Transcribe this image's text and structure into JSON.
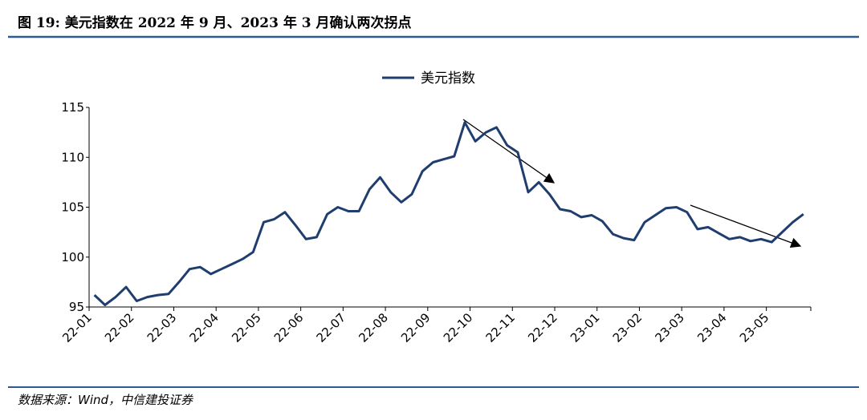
{
  "chart_data": {
    "type": "line",
    "title": "图 19: 美元指数在 2022 年 9 月、2023 年 3 月确认两次拐点",
    "source": "数据来源：Wind，中信建投证券",
    "categories": [
      "22-01",
      "22-02",
      "22-03",
      "22-04",
      "22-05",
      "22-06",
      "22-07",
      "22-08",
      "22-09",
      "22-10",
      "22-11",
      "22-12",
      "23-01",
      "23-02",
      "23-03",
      "23-04",
      "23-05"
    ],
    "x": [
      "22-01",
      "22-01",
      "22-01",
      "22-01",
      "22-02",
      "22-02",
      "22-02",
      "22-02",
      "22-03",
      "22-03",
      "22-03",
      "22-03",
      "22-04",
      "22-04",
      "22-04",
      "22-04",
      "22-05",
      "22-05",
      "22-05",
      "22-05",
      "22-06",
      "22-06",
      "22-06",
      "22-06",
      "22-07",
      "22-07",
      "22-07",
      "22-07",
      "22-08",
      "22-08",
      "22-08",
      "22-08",
      "22-09",
      "22-09",
      "22-09",
      "22-09",
      "22-10",
      "22-10",
      "22-10",
      "22-10",
      "22-11",
      "22-11",
      "22-11",
      "22-11",
      "22-12",
      "22-12",
      "22-12",
      "22-12",
      "23-01",
      "23-01",
      "23-01",
      "23-01",
      "23-02",
      "23-02",
      "23-02",
      "23-02",
      "23-03",
      "23-03",
      "23-03",
      "23-03",
      "23-04",
      "23-04",
      "23-04",
      "23-04",
      "23-05",
      "23-05",
      "23-05",
      "23-05"
    ],
    "series": [
      {
        "name": "美元指数",
        "color": "#1f3d6e",
        "values": [
          96.2,
          95.2,
          96.0,
          97.0,
          95.6,
          96.0,
          96.2,
          96.3,
          97.5,
          98.8,
          99.0,
          98.3,
          98.8,
          99.3,
          99.8,
          100.5,
          103.5,
          103.8,
          104.5,
          103.2,
          101.8,
          102.0,
          104.3,
          105.0,
          104.6,
          104.6,
          106.8,
          108.0,
          106.5,
          105.5,
          106.3,
          108.6,
          109.5,
          109.8,
          110.1,
          113.5,
          111.6,
          112.5,
          113.0,
          111.2,
          110.5,
          106.5,
          107.5,
          106.3,
          104.8,
          104.6,
          104.0,
          104.2,
          103.6,
          102.3,
          101.9,
          101.7,
          103.5,
          104.2,
          104.9,
          105.0,
          104.5,
          102.8,
          103.0,
          102.4,
          101.8,
          102.0,
          101.6,
          101.8,
          101.5,
          102.5,
          103.5,
          104.3
        ]
      }
    ],
    "ylim": [
      95,
      115
    ],
    "yticks": [
      95,
      100,
      105,
      110,
      115
    ],
    "legend": "top"
  }
}
